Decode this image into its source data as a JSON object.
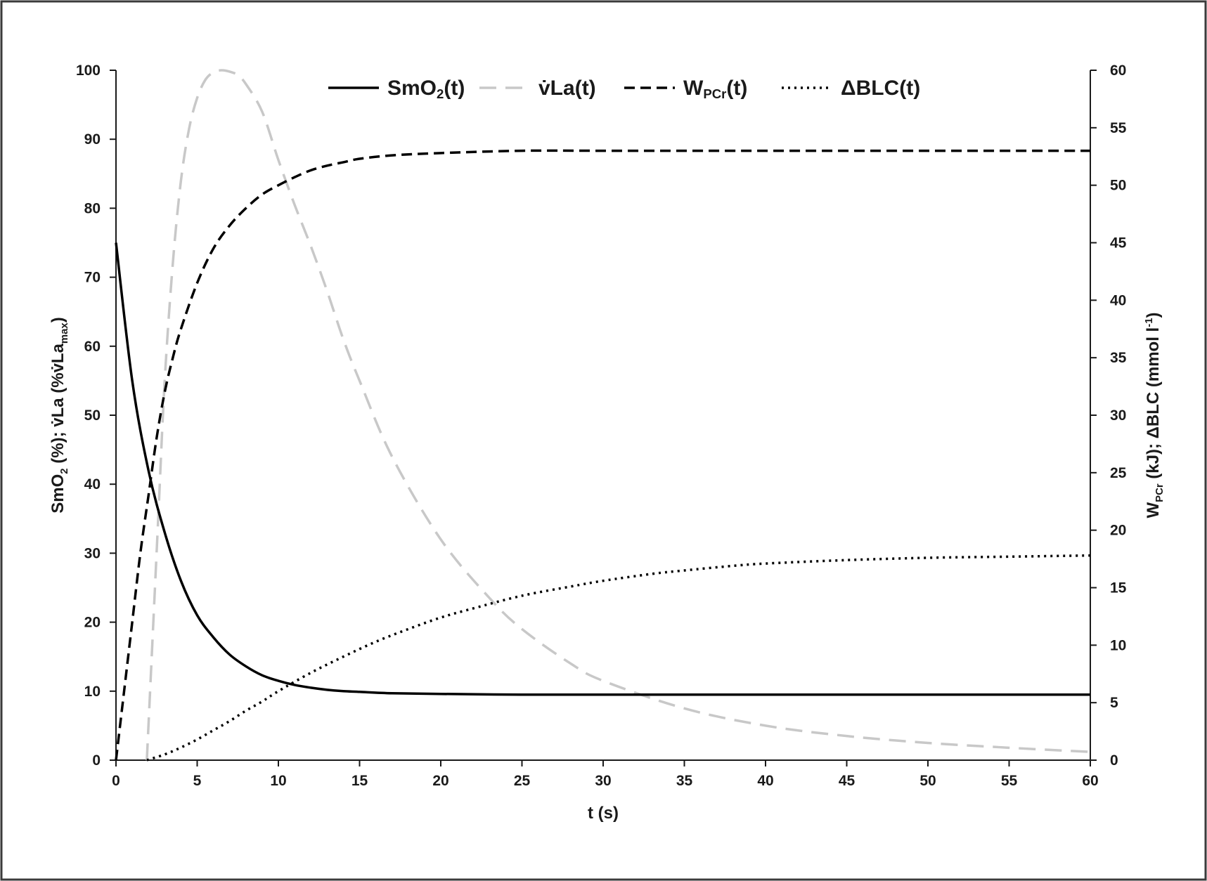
{
  "chart_data": {
    "type": "line",
    "xlabel": "t (s)",
    "ylabel_left": {
      "p1": "SmO",
      "p1_sub": "2",
      "p2": " (%); ",
      "p3": "v̇La (%v̇La",
      "p3_sub": "max",
      "p4": ")"
    },
    "ylabel_right": {
      "p1": "W",
      "p1_sub": "PCr",
      "p2": " (kJ); ΔBLC (mmol l",
      "p2_sup": "-1",
      "p3": ")"
    },
    "xlim": [
      0,
      60
    ],
    "xticks": [
      "0",
      "5",
      "10",
      "15",
      "20",
      "25",
      "30",
      "35",
      "40",
      "45",
      "50",
      "55",
      "60"
    ],
    "ylim_left": [
      0,
      100
    ],
    "yticks_left": [
      "0",
      "10",
      "20",
      "30",
      "40",
      "50",
      "60",
      "70",
      "80",
      "90",
      "100"
    ],
    "ylim_right": [
      0,
      60
    ],
    "yticks_right": [
      "0",
      "5",
      "10",
      "15",
      "20",
      "25",
      "30",
      "35",
      "40",
      "45",
      "50",
      "55",
      "60"
    ],
    "grid": false,
    "legend_position": "top",
    "legend": [
      {
        "main": "SmO",
        "sub": "2",
        "tail": "(t)",
        "style": "solid",
        "color": "#000000"
      },
      {
        "main": "v̇La",
        "sub": "",
        "tail": "(t)",
        "style": "dashed-light",
        "color": "#c8c8c8"
      },
      {
        "main": "W",
        "sub": "PCr",
        "tail": "(t)",
        "style": "dashed",
        "color": "#000000"
      },
      {
        "main": "ΔBLC",
        "sub": "",
        "tail": "(t)",
        "style": "dotted",
        "color": "#000000"
      }
    ],
    "series": [
      {
        "key": "smo2",
        "axis": "left",
        "style": "solid",
        "color": "#000000",
        "x": [
          0,
          1,
          2,
          3,
          4,
          5,
          6,
          7,
          8,
          9,
          10,
          11,
          12,
          13,
          14,
          15,
          17,
          20,
          25,
          30,
          40,
          50,
          60
        ],
        "y": [
          75,
          55,
          42,
          33,
          26,
          21,
          17.8,
          15.3,
          13.6,
          12.3,
          11.5,
          10.9,
          10.5,
          10.2,
          10.0,
          9.9,
          9.7,
          9.6,
          9.5,
          9.5,
          9.5,
          9.5,
          9.5
        ]
      },
      {
        "key": "vla",
        "axis": "left",
        "style": "dashed-light",
        "color": "#c8c8c8",
        "x": [
          1.9,
          2.2,
          2.6,
          3,
          3.5,
          4,
          4.5,
          5,
          5.5,
          6,
          6.5,
          7,
          7.5,
          8,
          9,
          10,
          11,
          12,
          13,
          14,
          15,
          17,
          20,
          23,
          25,
          28,
          30,
          35,
          40,
          45,
          50,
          55,
          60
        ],
        "y": [
          0,
          15,
          35,
          55,
          72,
          84,
          91.5,
          96,
          98.6,
          99.7,
          100,
          99.8,
          99.3,
          98,
          94,
          87,
          80.5,
          74.5,
          68,
          61,
          55,
          44,
          32,
          23.5,
          19,
          14,
          11.5,
          7.5,
          5,
          3.5,
          2.5,
          1.8,
          1.2
        ]
      },
      {
        "key": "wpcr",
        "axis": "right",
        "style": "dashed",
        "color": "#000000",
        "x": [
          0,
          0.5,
          1,
          1.5,
          2,
          2.5,
          3,
          3.5,
          4,
          5,
          6,
          7,
          8,
          9,
          10,
          11,
          12,
          13,
          14,
          15,
          17,
          20,
          25,
          30,
          40,
          50,
          60
        ],
        "y": [
          0,
          6,
          12,
          18,
          23,
          28,
          32,
          35,
          37.5,
          41.5,
          44.5,
          46.5,
          48,
          49.2,
          50,
          50.7,
          51.3,
          51.7,
          52,
          52.3,
          52.6,
          52.8,
          53,
          53,
          53,
          53,
          53
        ]
      },
      {
        "key": "dblc",
        "axis": "right",
        "style": "dotted",
        "color": "#000000",
        "x": [
          1.9,
          3,
          4,
          5,
          6,
          7,
          8,
          9,
          10,
          12,
          14,
          16,
          18,
          20,
          22,
          25,
          28,
          30,
          33,
          35,
          38,
          40,
          45,
          50,
          55,
          60
        ],
        "y": [
          0,
          0.5,
          1.1,
          1.8,
          2.6,
          3.4,
          4.3,
          5.1,
          6.0,
          7.6,
          9.0,
          10.3,
          11.4,
          12.4,
          13.2,
          14.3,
          15.1,
          15.6,
          16.2,
          16.5,
          16.9,
          17.1,
          17.4,
          17.6,
          17.7,
          17.8
        ]
      }
    ]
  }
}
